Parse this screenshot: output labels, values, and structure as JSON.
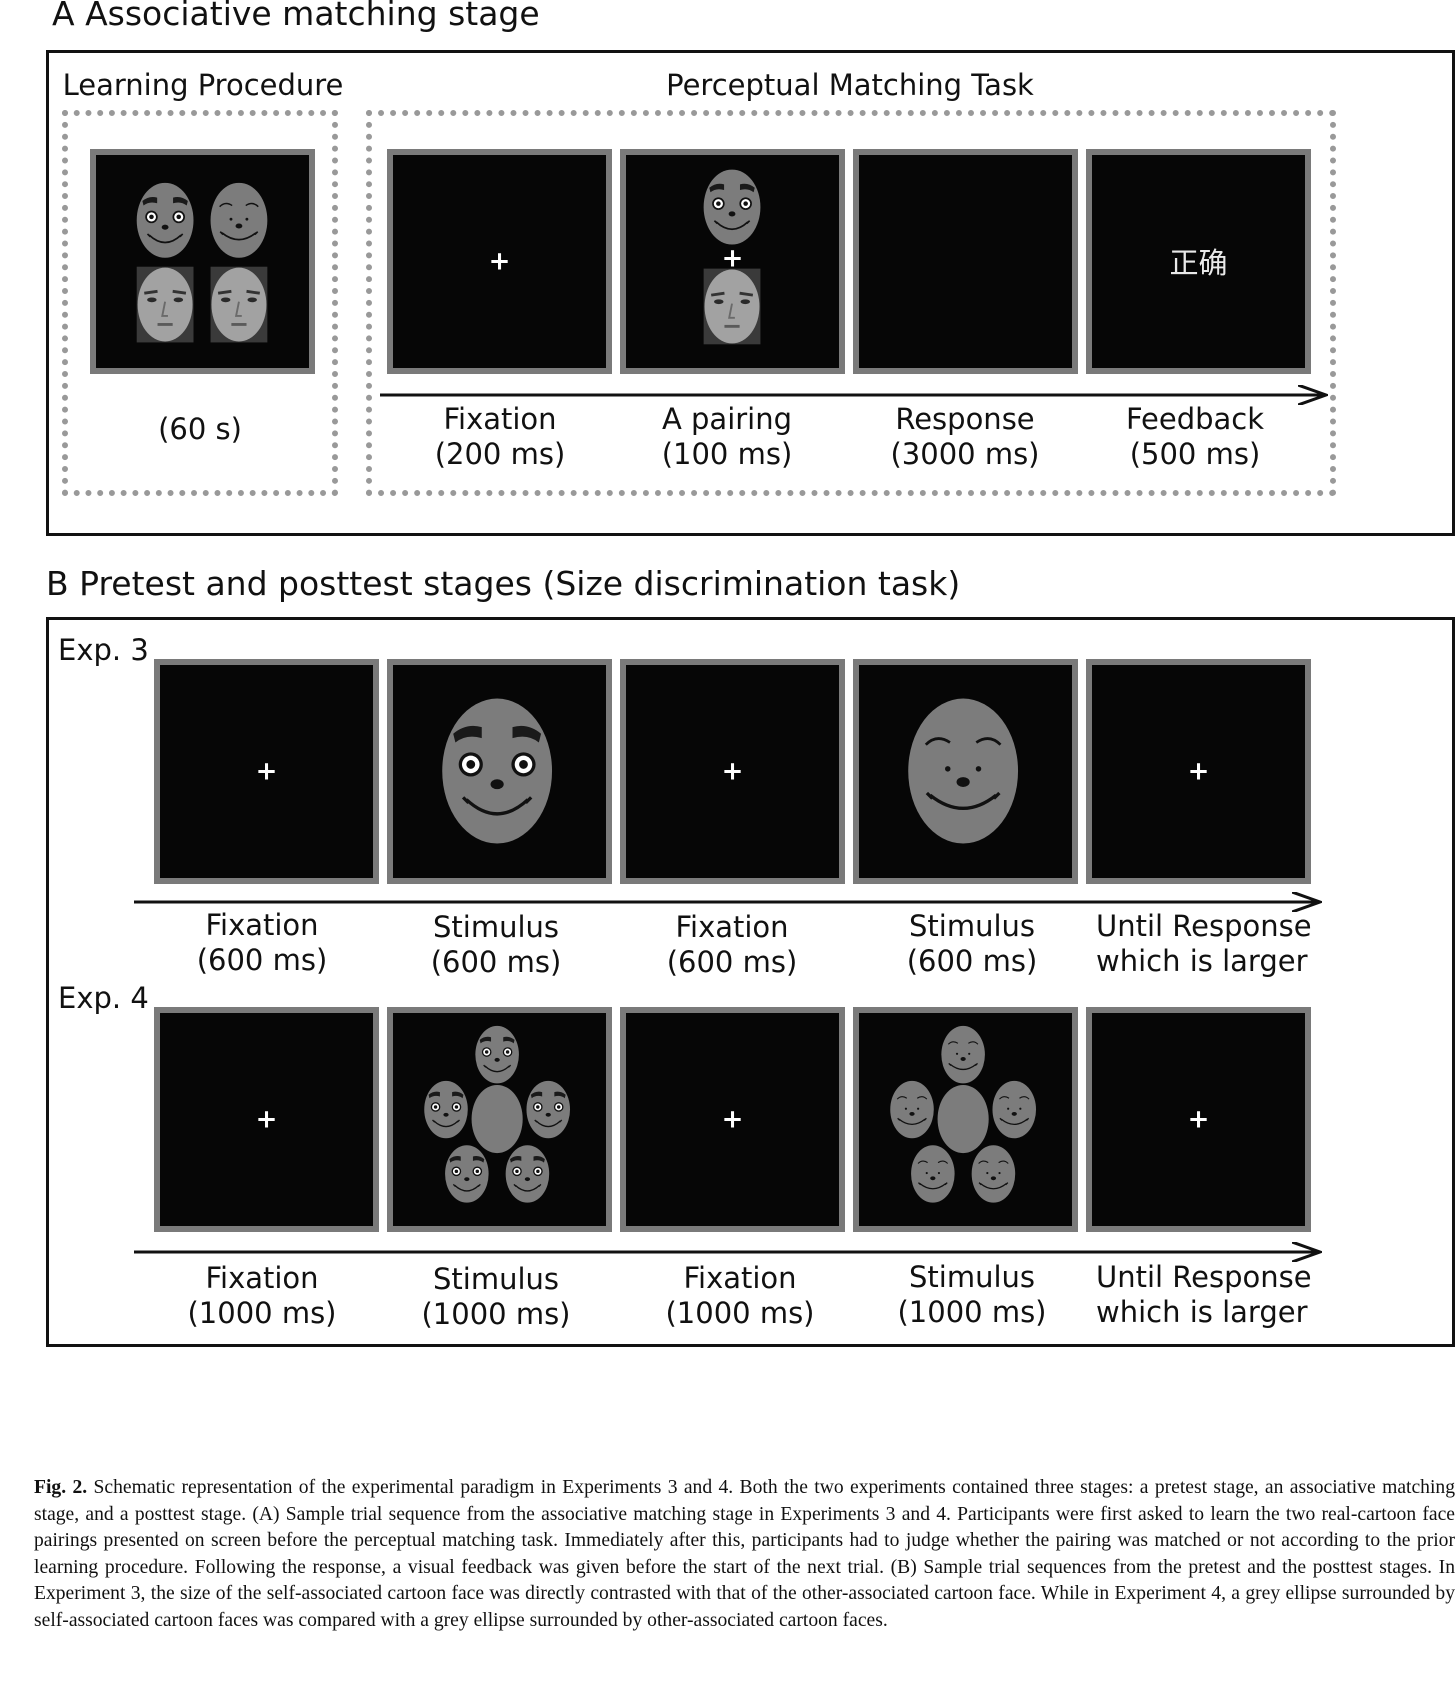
{
  "panel_a": {
    "title": "A   Associative matching stage",
    "learning": {
      "title": "Learning Procedure",
      "duration": "(60 s)"
    },
    "matching": {
      "title": "Perceptual Matching Task",
      "steps": [
        {
          "name": "Fixation",
          "duration": "(200 ms)"
        },
        {
          "name": "A pairing",
          "duration": "(100 ms)"
        },
        {
          "name": "Response",
          "duration": "(3000 ms)"
        },
        {
          "name": "Feedback",
          "duration": "(500 ms)"
        }
      ],
      "fixation_symbol": "+",
      "feedback_text": "正确"
    }
  },
  "panel_b": {
    "title": "B   Pretest and posttest stages (Size discrimination task)",
    "fixation_symbol": "+",
    "exp3": {
      "label": "Exp. 3",
      "steps": [
        {
          "name": "Fixation",
          "duration": "(600 ms)"
        },
        {
          "name": "Stimulus",
          "duration": "(600 ms)"
        },
        {
          "name": "Fixation",
          "duration": "(600 ms)"
        },
        {
          "name": "Stimulus",
          "duration": "(600 ms)"
        },
        {
          "name": "Until Response",
          "duration": "which is larger"
        }
      ]
    },
    "exp4": {
      "label": "Exp. 4",
      "steps": [
        {
          "name": "Fixation",
          "duration": "(1000 ms)"
        },
        {
          "name": "Stimulus",
          "duration": "(1000 ms)"
        },
        {
          "name": "Fixation",
          "duration": "(1000 ms)"
        },
        {
          "name": "Stimulus",
          "duration": "(1000 ms)"
        },
        {
          "name": "Until Response",
          "duration": "which is larger"
        }
      ]
    }
  },
  "caption": {
    "label": "Fig. 2.",
    "text": "Schematic representation of the experimental paradigm in Experiments 3 and 4. Both the two experiments contained three stages: a pretest stage, an associative matching stage, and a posttest stage. (A) Sample trial sequence from the associative matching stage in Experiments 3 and 4. Participants were first asked to learn the two real-cartoon face pairings presented on screen before the perceptual matching task. Immediately after this, participants had to judge whether the pairing was matched or not according to the prior learning procedure. Following the response, a visual feedback was given before the start of the next trial. (B) Sample trial sequences from the pretest and the posttest stages. In Experiment 3, the size of the self-associated cartoon face was directly contrasted with that of the other-associated cartoon face. While in Experiment 4, a grey ellipse surrounded by self-associated cartoon faces was compared with a grey ellipse surrounded by other-associated cartoon faces."
  },
  "colors": {
    "screen_bg": "#060606",
    "screen_border": "#7a7a7a",
    "face_grey": "#7c7c7c",
    "dotted_border": "#999999"
  }
}
